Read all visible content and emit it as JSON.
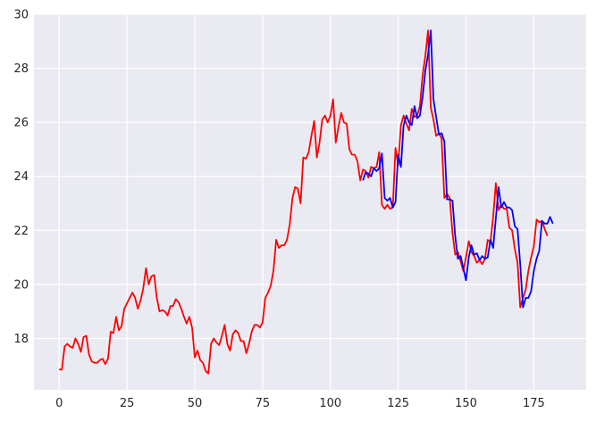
{
  "chart_data": {
    "type": "line",
    "title": "",
    "xlabel": "",
    "ylabel": "",
    "xlim": [
      -9.3,
      194.3
    ],
    "ylim": [
      16.1,
      30
    ],
    "x_ticks": [
      0,
      25,
      50,
      75,
      100,
      125,
      150,
      175
    ],
    "y_ticks": [
      18,
      20,
      22,
      24,
      26,
      28,
      30
    ],
    "grid": true,
    "background": "#eaeaf2",
    "series": [
      {
        "color": "#ff0000",
        "points": [
          [
            0,
            16.85
          ],
          [
            1,
            16.85
          ],
          [
            2,
            17.7
          ],
          [
            3,
            17.8
          ],
          [
            4,
            17.7
          ],
          [
            5,
            17.65
          ],
          [
            6,
            18.0
          ],
          [
            7,
            17.8
          ],
          [
            8,
            17.5
          ],
          [
            9,
            18.05
          ],
          [
            10,
            18.1
          ],
          [
            11,
            17.4
          ],
          [
            12,
            17.15
          ],
          [
            13,
            17.1
          ],
          [
            14,
            17.1
          ],
          [
            15,
            17.2
          ],
          [
            16,
            17.25
          ],
          [
            17,
            17.05
          ],
          [
            18,
            17.25
          ],
          [
            19,
            18.25
          ],
          [
            20,
            18.2
          ],
          [
            21,
            18.8
          ],
          [
            22,
            18.3
          ],
          [
            23,
            18.45
          ],
          [
            24,
            19.1
          ],
          [
            25,
            19.3
          ],
          [
            26,
            19.5
          ],
          [
            27,
            19.7
          ],
          [
            28,
            19.5
          ],
          [
            29,
            19.1
          ],
          [
            30,
            19.4
          ],
          [
            31,
            19.85
          ],
          [
            32,
            20.6
          ],
          [
            33,
            20.0
          ],
          [
            34,
            20.3
          ],
          [
            35,
            20.35
          ],
          [
            36,
            19.5
          ],
          [
            37,
            19.0
          ],
          [
            38,
            19.05
          ],
          [
            39,
            19.0
          ],
          [
            40,
            18.85
          ],
          [
            41,
            19.2
          ],
          [
            42,
            19.2
          ],
          [
            43,
            19.45
          ],
          [
            44,
            19.35
          ],
          [
            45,
            19.1
          ],
          [
            46,
            18.8
          ],
          [
            47,
            18.55
          ],
          [
            48,
            18.8
          ],
          [
            49,
            18.4
          ],
          [
            50,
            17.3
          ],
          [
            51,
            17.55
          ],
          [
            52,
            17.2
          ],
          [
            53,
            17.1
          ],
          [
            54,
            16.8
          ],
          [
            55,
            16.7
          ],
          [
            56,
            17.8
          ],
          [
            57,
            18.0
          ],
          [
            58,
            17.85
          ],
          [
            59,
            17.75
          ],
          [
            60,
            18.1
          ],
          [
            61,
            18.5
          ],
          [
            62,
            17.8
          ],
          [
            63,
            17.55
          ],
          [
            64,
            18.15
          ],
          [
            65,
            18.3
          ],
          [
            66,
            18.2
          ],
          [
            67,
            17.9
          ],
          [
            68,
            17.9
          ],
          [
            69,
            17.45
          ],
          [
            70,
            17.8
          ],
          [
            71,
            18.25
          ],
          [
            72,
            18.5
          ],
          [
            73,
            18.5
          ],
          [
            74,
            18.4
          ],
          [
            75,
            18.6
          ],
          [
            76,
            19.5
          ],
          [
            77,
            19.7
          ],
          [
            78,
            19.95
          ],
          [
            79,
            20.5
          ],
          [
            80,
            21.65
          ],
          [
            81,
            21.35
          ],
          [
            82,
            21.45
          ],
          [
            83,
            21.45
          ],
          [
            84,
            21.65
          ],
          [
            85,
            22.2
          ],
          [
            86,
            23.2
          ],
          [
            87,
            23.6
          ],
          [
            88,
            23.55
          ],
          [
            89,
            23.0
          ],
          [
            90,
            24.7
          ],
          [
            91,
            24.65
          ],
          [
            92,
            24.9
          ],
          [
            93,
            25.5
          ],
          [
            94,
            26.05
          ],
          [
            95,
            24.7
          ],
          [
            96,
            25.25
          ],
          [
            97,
            26.1
          ],
          [
            98,
            26.25
          ],
          [
            99,
            26.0
          ],
          [
            100,
            26.25
          ],
          [
            101,
            26.85
          ],
          [
            102,
            25.25
          ],
          [
            103,
            25.85
          ],
          [
            104,
            26.35
          ],
          [
            105,
            26.0
          ],
          [
            106,
            25.95
          ],
          [
            107,
            25.0
          ],
          [
            108,
            24.8
          ],
          [
            109,
            24.8
          ],
          [
            110,
            24.55
          ],
          [
            111,
            23.85
          ],
          [
            112,
            24.25
          ],
          [
            113,
            24.2
          ],
          [
            114,
            23.95
          ],
          [
            115,
            24.35
          ],
          [
            116,
            24.3
          ],
          [
            117,
            24.35
          ],
          [
            118,
            24.9
          ],
          [
            119,
            22.95
          ],
          [
            120,
            22.8
          ],
          [
            121,
            22.95
          ],
          [
            122,
            22.8
          ],
          [
            123,
            22.85
          ],
          [
            124,
            25.05
          ],
          [
            125,
            24.4
          ],
          [
            126,
            25.9
          ],
          [
            127,
            26.25
          ],
          [
            128,
            25.95
          ],
          [
            129,
            25.7
          ],
          [
            130,
            26.5
          ],
          [
            131,
            26.2
          ],
          [
            132,
            26.25
          ],
          [
            133,
            26.6
          ],
          [
            134,
            27.75
          ],
          [
            135,
            28.45
          ],
          [
            136,
            29.4
          ],
          [
            137,
            26.55
          ],
          [
            138,
            26.1
          ],
          [
            139,
            25.5
          ],
          [
            140,
            25.6
          ],
          [
            141,
            25.4
          ],
          [
            142,
            23.2
          ],
          [
            143,
            23.35
          ],
          [
            144,
            23.2
          ],
          [
            145,
            21.9
          ],
          [
            146,
            21.1
          ],
          [
            147,
            21.2
          ],
          [
            148,
            20.85
          ],
          [
            149,
            20.5
          ],
          [
            150,
            21.0
          ],
          [
            151,
            21.6
          ],
          [
            152,
            21.2
          ],
          [
            153,
            21.05
          ],
          [
            154,
            20.8
          ],
          [
            155,
            20.9
          ],
          [
            156,
            20.75
          ],
          [
            157,
            20.95
          ],
          [
            158,
            21.65
          ],
          [
            159,
            21.55
          ],
          [
            160,
            22.5
          ],
          [
            161,
            23.75
          ],
          [
            162,
            22.75
          ],
          [
            163,
            22.95
          ],
          [
            164,
            22.8
          ],
          [
            165,
            22.8
          ],
          [
            166,
            22.1
          ],
          [
            167,
            22.0
          ],
          [
            168,
            21.3
          ],
          [
            169,
            20.8
          ],
          [
            170,
            19.15
          ],
          [
            171,
            19.5
          ],
          [
            172,
            19.8
          ],
          [
            173,
            20.5
          ],
          [
            174,
            21.0
          ],
          [
            175,
            21.4
          ],
          [
            176,
            22.4
          ],
          [
            177,
            22.3
          ],
          [
            178,
            22.35
          ],
          [
            179,
            22.05
          ],
          [
            180,
            21.8
          ]
        ]
      },
      {
        "color": "#0000ff",
        "points": [
          [
            112,
            23.85
          ],
          [
            113,
            24.15
          ],
          [
            114,
            24.1
          ],
          [
            115,
            24.0
          ],
          [
            116,
            24.3
          ],
          [
            117,
            24.2
          ],
          [
            118,
            24.3
          ],
          [
            119,
            24.85
          ],
          [
            120,
            23.2
          ],
          [
            121,
            23.1
          ],
          [
            122,
            23.2
          ],
          [
            123,
            22.85
          ],
          [
            124,
            23.05
          ],
          [
            125,
            24.8
          ],
          [
            126,
            24.35
          ],
          [
            127,
            25.9
          ],
          [
            128,
            26.25
          ],
          [
            129,
            26.0
          ],
          [
            130,
            25.9
          ],
          [
            131,
            26.6
          ],
          [
            132,
            26.15
          ],
          [
            133,
            26.25
          ],
          [
            134,
            26.95
          ],
          [
            135,
            27.9
          ],
          [
            136,
            28.5
          ],
          [
            137,
            29.4
          ],
          [
            138,
            26.85
          ],
          [
            139,
            26.2
          ],
          [
            140,
            25.55
          ],
          [
            141,
            25.6
          ],
          [
            142,
            25.3
          ],
          [
            143,
            23.15
          ],
          [
            144,
            23.15
          ],
          [
            145,
            23.1
          ],
          [
            146,
            21.8
          ],
          [
            147,
            20.95
          ],
          [
            148,
            21.05
          ],
          [
            149,
            20.6
          ],
          [
            150,
            20.15
          ],
          [
            151,
            21.0
          ],
          [
            152,
            21.45
          ],
          [
            153,
            21.1
          ],
          [
            154,
            21.15
          ],
          [
            155,
            20.9
          ],
          [
            156,
            21.05
          ],
          [
            157,
            20.95
          ],
          [
            158,
            21.0
          ],
          [
            159,
            21.65
          ],
          [
            160,
            21.35
          ],
          [
            161,
            22.45
          ],
          [
            162,
            23.6
          ],
          [
            163,
            22.85
          ],
          [
            164,
            23.05
          ],
          [
            165,
            22.85
          ],
          [
            166,
            22.85
          ],
          [
            167,
            22.75
          ],
          [
            168,
            22.15
          ],
          [
            169,
            22.05
          ],
          [
            170,
            20.75
          ],
          [
            171,
            19.15
          ],
          [
            172,
            19.5
          ],
          [
            173,
            19.5
          ],
          [
            174,
            19.75
          ],
          [
            175,
            20.5
          ],
          [
            176,
            20.95
          ],
          [
            177,
            21.25
          ],
          [
            178,
            22.35
          ],
          [
            179,
            22.25
          ],
          [
            180,
            22.25
          ],
          [
            181,
            22.5
          ],
          [
            182,
            22.25
          ]
        ]
      }
    ]
  }
}
